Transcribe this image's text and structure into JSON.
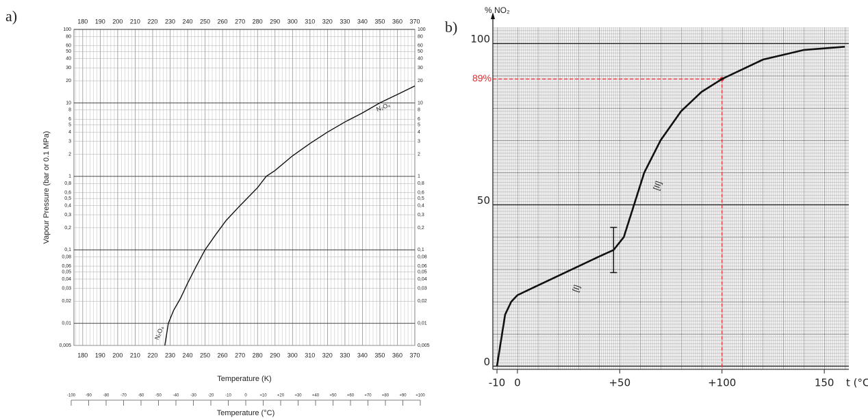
{
  "chart_data": [
    {
      "type": "line",
      "panel_label": "a)",
      "x_label": "Temperature (K)",
      "y_label": "Vapour Pressure (bar or 0.1 MPa)",
      "log_y": true,
      "grid": true,
      "x": [
        227,
        229,
        232,
        236,
        240,
        245,
        250,
        256,
        262,
        270,
        280,
        285,
        290,
        300,
        310,
        320,
        330,
        340,
        350,
        360,
        370
      ],
      "series": [
        {
          "name": "N₂O₄",
          "color": "#111111",
          "values": [
            0.005,
            0.01,
            0.015,
            0.022,
            0.035,
            0.06,
            0.1,
            0.16,
            0.25,
            0.4,
            0.7,
            1.0,
            1.2,
            1.9,
            2.8,
            4.0,
            5.5,
            7.3,
            10,
            13,
            17
          ]
        }
      ],
      "xlim": [
        175,
        370
      ],
      "xticks": [
        180,
        190,
        200,
        210,
        220,
        230,
        240,
        250,
        260,
        270,
        280,
        290,
        300,
        310,
        320,
        330,
        340,
        350,
        360,
        370
      ],
      "ylim": [
        0.005,
        100
      ],
      "yticks": [
        100,
        80,
        60,
        50,
        40,
        30,
        20,
        10,
        8,
        6,
        5,
        4,
        3,
        2,
        1,
        {
          "value": 0.8,
          "label": "0,8"
        },
        {
          "value": 0.6,
          "label": "0,6"
        },
        {
          "value": 0.5,
          "label": "0,5"
        },
        {
          "value": 0.4,
          "label": "0,4"
        },
        {
          "value": 0.3,
          "label": "0,3"
        },
        {
          "value": 0.2,
          "label": "0,2"
        },
        {
          "value": 0.1,
          "label": "0,1"
        },
        {
          "value": 0.08,
          "label": "0,08"
        },
        {
          "value": 0.06,
          "label": "0,06"
        },
        {
          "value": 0.05,
          "label": "0,05"
        },
        {
          "value": 0.04,
          "label": "0,04"
        },
        {
          "value": 0.03,
          "label": "0,03"
        },
        {
          "value": 0.02,
          "label": "0,02"
        },
        {
          "value": 0.01,
          "label": "0,01"
        },
        {
          "value": 0.005,
          "label": "0,005"
        }
      ],
      "x2_label": "Temperature (°C)",
      "x2lim": [
        -100,
        100
      ],
      "x2ticks": [
        -100,
        -90,
        -80,
        -70,
        -60,
        -50,
        -40,
        -30,
        -20,
        -10,
        0,
        {
          "value": 10,
          "label": "+10"
        },
        {
          "value": 20,
          "label": "+20"
        },
        {
          "value": 30,
          "label": "+30"
        },
        {
          "value": 40,
          "label": "+40"
        },
        {
          "value": 50,
          "label": "+50"
        },
        {
          "value": 60,
          "label": "+60"
        },
        {
          "value": 70,
          "label": "+70"
        },
        {
          "value": 80,
          "label": "+80"
        },
        {
          "value": 90,
          "label": "+90"
        },
        {
          "value": 100,
          "label": "+100"
        }
      ]
    },
    {
      "type": "line",
      "panel_label": "b)",
      "x_label": "t (°C)",
      "y_label": "% NO₂",
      "grid": true,
      "x": [
        -10,
        -8,
        -6,
        -3,
        0,
        10,
        20,
        30,
        40,
        47,
        52,
        57,
        62,
        70,
        80,
        90,
        100,
        110,
        120,
        140,
        160
      ],
      "series": [
        {
          "color": "#111111",
          "values": [
            0,
            8,
            16,
            20,
            22,
            25,
            28,
            31,
            34,
            36,
            40,
            50,
            60,
            70,
            79,
            85,
            89,
            92,
            95,
            98,
            99
          ]
        }
      ],
      "xlim": [
        -12,
        162
      ],
      "xticks": [
        -10,
        0,
        {
          "value": 50,
          "label": "+50"
        },
        {
          "value": 100,
          "label": "+100"
        },
        150
      ],
      "ylim": [
        -1,
        105
      ],
      "yticks": [
        0,
        50,
        100
      ],
      "annotations": [
        {
          "text": "89%",
          "x": 100,
          "y": 89,
          "color": "#e0282d"
        }
      ],
      "region_labels": [
        "[I]",
        "[II]"
      ],
      "errorbar": {
        "x": 47,
        "low": 29,
        "high": 43
      }
    }
  ]
}
